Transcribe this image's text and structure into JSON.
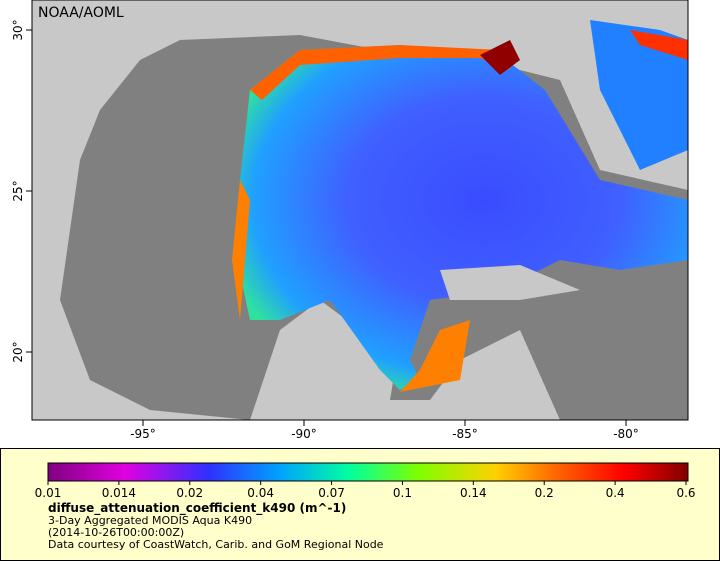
{
  "map": {
    "credit": "NOAA/AOML",
    "lon_ticks": [
      "-95°",
      "-90°",
      "-85°",
      "-80°"
    ],
    "lat_ticks": [
      "30°",
      "25°",
      "20°"
    ]
  },
  "colorbar": {
    "ticks": [
      "0.01",
      "0.014",
      "0.02",
      "0.04",
      "0.07",
      "0.1",
      "0.14",
      "0.2",
      "0.4",
      "0.6"
    ],
    "title": "diffuse_attenuation_coefficient_k490 (m^-1)",
    "lines": [
      "3-Day Aggregated MODIS Aqua K490",
      "(2014-10-26T00:00:00Z)",
      "Data courtesy of CoastWatch, Carib. and GoM Regional Node"
    ]
  }
}
